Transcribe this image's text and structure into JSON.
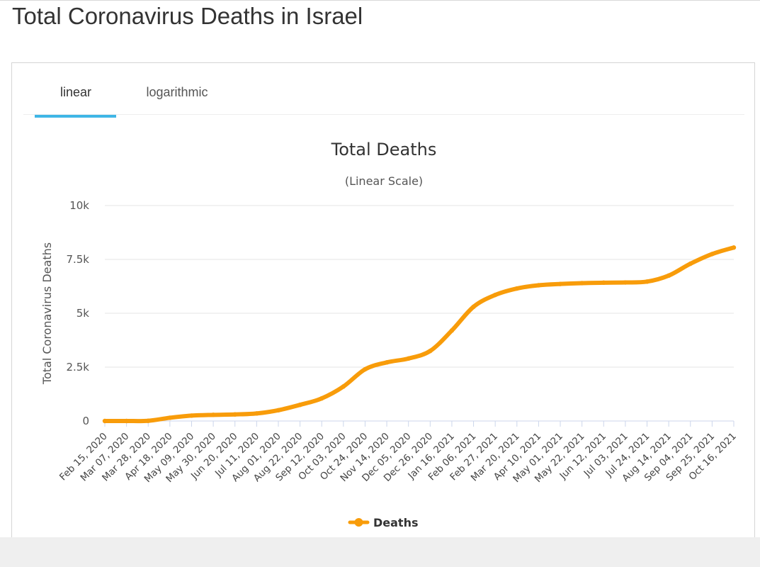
{
  "page": {
    "title": "Total Coronavirus Deaths in Israel"
  },
  "tabs": [
    {
      "label": "linear",
      "active": true
    },
    {
      "label": "logarithmic",
      "active": false
    }
  ],
  "colors": {
    "series": "#f89c0a",
    "tab_active": "#3fb6e6",
    "grid": "#e6e6e6"
  },
  "legend": {
    "icon": "legend-line-marker-icon"
  },
  "chart_data": {
    "type": "line",
    "title": "Total Deaths",
    "subtitle": "(Linear Scale)",
    "ylabel": "Total Coronavirus Deaths",
    "xlabel": "",
    "ylim": [
      0,
      10000
    ],
    "y_ticks": [
      0,
      2500,
      5000,
      7500,
      10000
    ],
    "y_tick_labels": [
      "0",
      "2.5k",
      "5k",
      "7.5k",
      "10k"
    ],
    "grid": true,
    "legend_position": "bottom-center",
    "x_tick_labels": [
      "Feb 15, 2020",
      "Mar 07, 2020",
      "Mar 28, 2020",
      "Apr 18, 2020",
      "May 09, 2020",
      "May 30, 2020",
      "Jun 20, 2020",
      "Jul 11, 2020",
      "Aug 01, 2020",
      "Aug 22, 2020",
      "Sep 12, 2020",
      "Oct 03, 2020",
      "Oct 24, 2020",
      "Nov 14, 2020",
      "Dec 05, 2020",
      "Dec 26, 2020",
      "Jan 16, 2021",
      "Feb 06, 2021",
      "Feb 27, 2021",
      "Mar 20, 2021",
      "Apr 10, 2021",
      "May 01, 2021",
      "May 22, 2021",
      "Jun 12, 2021",
      "Jul 03, 2021",
      "Jul 24, 2021",
      "Aug 14, 2021",
      "Sep 04, 2021",
      "Sep 25, 2021",
      "Oct 16, 2021"
    ],
    "series": [
      {
        "name": "Deaths",
        "points": [
          [
            "Feb 15, 2020",
            0
          ],
          [
            "Mar 07, 2020",
            0
          ],
          [
            "Mar 28, 2020",
            10
          ],
          [
            "Apr 18, 2020",
            150
          ],
          [
            "May 09, 2020",
            250
          ],
          [
            "May 30, 2020",
            285
          ],
          [
            "Jun 20, 2020",
            305
          ],
          [
            "Jul 11, 2020",
            350
          ],
          [
            "Aug 01, 2020",
            500
          ],
          [
            "Aug 22, 2020",
            750
          ],
          [
            "Sep 12, 2020",
            1050
          ],
          [
            "Oct 03, 2020",
            1600
          ],
          [
            "Oct 24, 2020",
            2400
          ],
          [
            "Nov 14, 2020",
            2720
          ],
          [
            "Dec 05, 2020",
            2900
          ],
          [
            "Dec 26, 2020",
            3250
          ],
          [
            "Jan 16, 2021",
            4200
          ],
          [
            "Feb 06, 2021",
            5300
          ],
          [
            "Feb 27, 2021",
            5850
          ],
          [
            "Mar 20, 2021",
            6150
          ],
          [
            "Apr 10, 2021",
            6300
          ],
          [
            "May 01, 2021",
            6360
          ],
          [
            "May 22, 2021",
            6400
          ],
          [
            "Jun 12, 2021",
            6420
          ],
          [
            "Jul 03, 2021",
            6430
          ],
          [
            "Jul 24, 2021",
            6470
          ],
          [
            "Aug 14, 2021",
            6750
          ],
          [
            "Sep 04, 2021",
            7300
          ],
          [
            "Sep 25, 2021",
            7750
          ],
          [
            "Oct 16, 2021",
            8050
          ]
        ]
      }
    ]
  }
}
